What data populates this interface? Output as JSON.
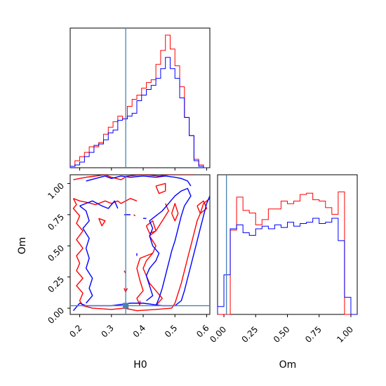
{
  "chart_data": {
    "type": "corner",
    "parameters": [
      "H0",
      "Om"
    ],
    "truths": {
      "H0": 0.345,
      "Om": 0.02
    },
    "colors": {
      "truth": "#4682b4",
      "series_a": "#ff0000",
      "series_b": "#0000ff"
    },
    "panels": [
      {
        "id": "hist-h0",
        "type": "histogram",
        "xlim": [
          0.17,
          0.61
        ],
        "bins": [
          0.17,
          0.185,
          0.2,
          0.215,
          0.23,
          0.245,
          0.26,
          0.275,
          0.29,
          0.305,
          0.32,
          0.335,
          0.35,
          0.365,
          0.38,
          0.395,
          0.41,
          0.425,
          0.44,
          0.455,
          0.47,
          0.485,
          0.5,
          0.515,
          0.53,
          0.545,
          0.56,
          0.575,
          0.59,
          0.605
        ],
        "series": [
          {
            "color": "red",
            "values": [
              0.01,
              0.05,
              0.08,
              0.11,
              0.15,
              0.15,
              0.18,
              0.24,
              0.29,
              0.33,
              0.37,
              0.35,
              0.44,
              0.49,
              0.52,
              0.57,
              0.61,
              0.63,
              0.74,
              0.84,
              0.95,
              0.85,
              0.73,
              0.58,
              0.36,
              0.23,
              0.06,
              0.02,
              0.0
            ]
          },
          {
            "color": "blue",
            "values": [
              0.01,
              0.02,
              0.04,
              0.08,
              0.11,
              0.16,
              0.17,
              0.2,
              0.25,
              0.27,
              0.34,
              0.35,
              0.37,
              0.39,
              0.48,
              0.52,
              0.56,
              0.59,
              0.64,
              0.71,
              0.79,
              0.71,
              0.64,
              0.5,
              0.36,
              0.23,
              0.05,
              0.01,
              0.0
            ]
          }
        ]
      },
      {
        "id": "hist-om",
        "type": "histogram",
        "xlim": [
          -0.05,
          1.05
        ],
        "bins": [
          -0.05,
          0.0,
          0.05,
          0.1,
          0.15,
          0.2,
          0.25,
          0.3,
          0.35,
          0.4,
          0.45,
          0.5,
          0.55,
          0.6,
          0.65,
          0.7,
          0.75,
          0.8,
          0.85,
          0.9,
          0.95,
          1.0,
          1.05
        ],
        "series": [
          {
            "color": "red",
            "values": [
              0.0,
              0.0,
              0.64,
              0.89,
              0.79,
              0.77,
              0.68,
              0.72,
              0.8,
              0.8,
              0.86,
              0.84,
              0.86,
              0.91,
              0.92,
              0.87,
              0.86,
              0.81,
              0.76,
              0.93,
              0.0,
              0.0
            ]
          },
          {
            "color": "blue",
            "values": [
              0.06,
              0.3,
              0.65,
              0.68,
              0.62,
              0.6,
              0.65,
              0.67,
              0.65,
              0.68,
              0.66,
              0.7,
              0.67,
              0.69,
              0.7,
              0.73,
              0.69,
              0.7,
              0.73,
              0.56,
              0.13,
              0.0
            ]
          }
        ]
      },
      {
        "id": "contour-h0-om",
        "type": "contour",
        "xlim": [
          0.17,
          0.61
        ],
        "ylim": [
          -0.05,
          1.07
        ],
        "xlabel": "H0",
        "ylabel": "Om",
        "xticks": [
          "0.2",
          "0.3",
          "0.4",
          "0.5",
          "0.6"
        ],
        "yticks": [
          "0.00",
          "0.25",
          "0.50",
          "0.75",
          "1.00"
        ],
        "truth_marker": [
          0.345,
          0.02
        ]
      }
    ],
    "hist_om_axis": {
      "label": "Om",
      "ticks": [
        "0.00",
        "0.25",
        "0.50",
        "0.75",
        "1.00"
      ]
    },
    "hist_h0_ticks": [
      "0.2",
      "0.3",
      "0.4",
      "0.5",
      "0.6"
    ]
  }
}
